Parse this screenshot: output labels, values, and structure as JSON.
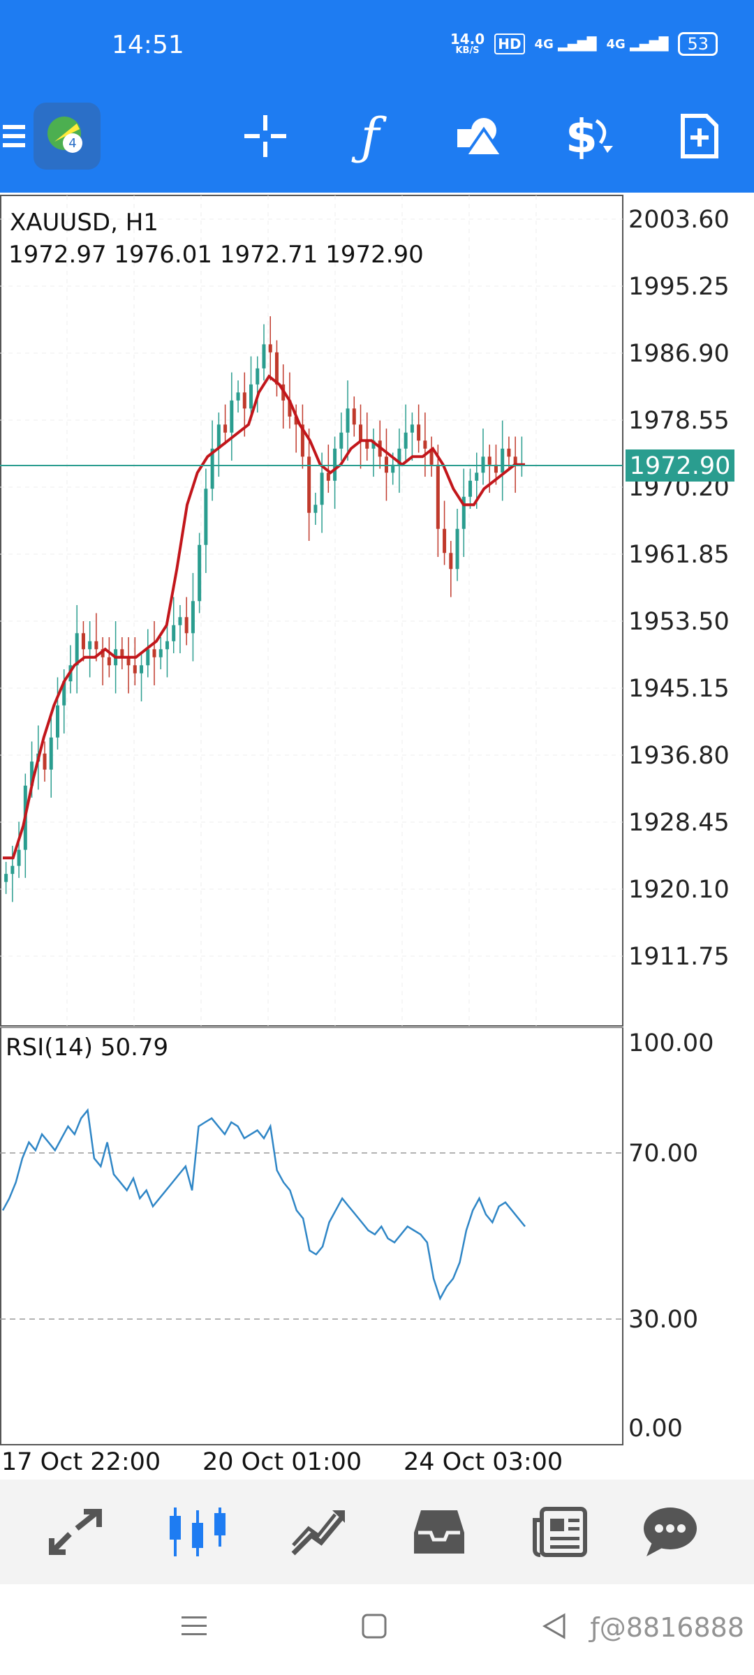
{
  "status_bar": {
    "time": "14:51",
    "net_speed_value": "14.0",
    "net_speed_unit": "KB/S",
    "hd_label": "HD",
    "signal_1": "4G",
    "signal_2": "4G",
    "battery": "53"
  },
  "toolbar": {
    "items": [
      {
        "icon": "menu-icon"
      },
      {
        "icon": "app-logo-icon"
      },
      {
        "icon": "crosshair-icon"
      },
      {
        "icon": "indicators-icon"
      },
      {
        "icon": "objects-icon"
      },
      {
        "icon": "symbol-change-icon"
      },
      {
        "icon": "new-order-icon"
      }
    ]
  },
  "chart": {
    "symbol_line": "XAUUSD, H1",
    "ohlc_line": "1972.97 1976.01 1972.71 1972.90",
    "current_price_label": "1972.90",
    "price_labels": [
      "2003.60",
      "1995.25",
      "1986.90",
      "1978.55",
      "1970.20",
      "1961.85",
      "1953.50",
      "1945.15",
      "1936.80",
      "1928.45",
      "1920.10",
      "1911.75"
    ],
    "rsi_title": "RSI(14) 50.79",
    "rsi_labels": [
      "100.00",
      "70.00",
      "30.00",
      "0.00"
    ],
    "time_labels": [
      "17 Oct 22:00",
      "20 Oct 01:00",
      "24 Oct 03:00"
    ],
    "colors": {
      "bull": "#2a9d8f",
      "bear": "#c0392b",
      "ma": "#c2161b",
      "rsi": "#2f86c6",
      "price_tag": "#2a9d8f"
    }
  },
  "chart_data": [
    {
      "type": "candlestick",
      "title": "XAUUSD, H1",
      "ylim": [
        1904,
        2006
      ],
      "x_ticks": [
        "17 Oct 22:00",
        "20 Oct 01:00",
        "24 Oct 03:00"
      ],
      "close_series_approx": [
        1922,
        1923,
        1925,
        1933,
        1936,
        1937,
        1935,
        1939,
        1943,
        1946,
        1948,
        1952,
        1950,
        1951,
        1950,
        1949,
        1948,
        1950,
        1949,
        1948,
        1947,
        1948,
        1950,
        1949,
        1950,
        1951,
        1953,
        1954,
        1952,
        1956,
        1963,
        1970,
        1975,
        1978,
        1977,
        1981,
        1982,
        1980,
        1983,
        1985,
        1988,
        1987,
        1983,
        1981,
        1979,
        1978,
        1974,
        1967,
        1968,
        1972,
        1971,
        1975,
        1977,
        1980,
        1978,
        1976,
        1975,
        1976,
        1974,
        1972,
        1973,
        1975,
        1977,
        1978,
        1976,
        1975,
        1973,
        1965,
        1962,
        1960,
        1965,
        1969,
        1971,
        1972,
        1974,
        1973,
        1972,
        1975,
        1974,
        1973,
        1973
      ],
      "moving_average_approx": [
        1924,
        1924,
        1928,
        1934,
        1939,
        1943,
        1946,
        1948,
        1949,
        1949,
        1950,
        1949,
        1949,
        1949,
        1950,
        1951,
        1953,
        1960,
        1968,
        1972,
        1974,
        1975,
        1976,
        1977,
        1978,
        1982,
        1984,
        1983,
        1981,
        1978,
        1976,
        1973,
        1972,
        1973,
        1975,
        1976,
        1976,
        1975,
        1974,
        1973,
        1974,
        1974,
        1975,
        1973,
        1970,
        1968,
        1968,
        1970,
        1971,
        1972,
        1973,
        1973
      ]
    },
    {
      "type": "line",
      "title": "RSI(14) 50.79",
      "ylim": [
        0,
        100
      ],
      "levels": [
        30,
        70
      ],
      "values": [
        55,
        58,
        62,
        68,
        72,
        70,
        74,
        72,
        70,
        73,
        76,
        74,
        78,
        80,
        68,
        66,
        72,
        64,
        62,
        60,
        63,
        58,
        60,
        56,
        58,
        60,
        62,
        64,
        66,
        60,
        76,
        77,
        78,
        76,
        74,
        77,
        76,
        73,
        74,
        75,
        73,
        76,
        65,
        62,
        60,
        55,
        53,
        45,
        44,
        46,
        52,
        55,
        58,
        56,
        54,
        52,
        50,
        49,
        51,
        48,
        47,
        49,
        51,
        50,
        49,
        47,
        38,
        33,
        36,
        38,
        42,
        50,
        55,
        58,
        54,
        52,
        56,
        57,
        55,
        53,
        51
      ]
    }
  ],
  "bottom_nav": {
    "items": [
      {
        "icon": "quotes-icon"
      },
      {
        "icon": "chart-icon"
      },
      {
        "icon": "trade-icon"
      },
      {
        "icon": "history-icon"
      },
      {
        "icon": "news-icon"
      },
      {
        "icon": "messages-icon"
      }
    ]
  },
  "system_nav": {
    "watermark": "ƒ@8816888"
  }
}
